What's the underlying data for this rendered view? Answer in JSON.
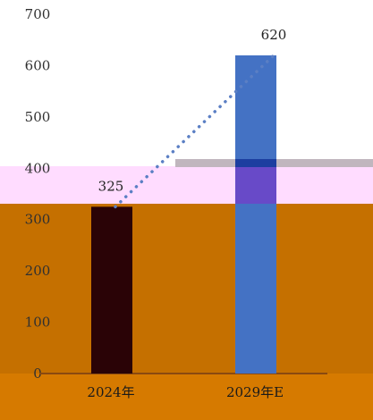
{
  "chart_data": {
    "type": "bar",
    "categories": [
      "2024年",
      "2029年E"
    ],
    "values": [
      325,
      620
    ],
    "data_labels": [
      "325",
      "620"
    ],
    "ylim": [
      0,
      700
    ],
    "yticks": [
      "0",
      "100",
      "200",
      "300",
      "400",
      "500",
      "600",
      "700"
    ],
    "trend_line": "dotted",
    "grid": false,
    "title": "",
    "xlabel": "",
    "ylabel": ""
  },
  "colors": {
    "bar_2029": "#4472c4",
    "bar_2024": "#2a0306",
    "trend_line": "#5b7fc4",
    "band_orange": "#c57000",
    "band_pink": "#ffdcff",
    "band_grey": "#c0b6be"
  }
}
